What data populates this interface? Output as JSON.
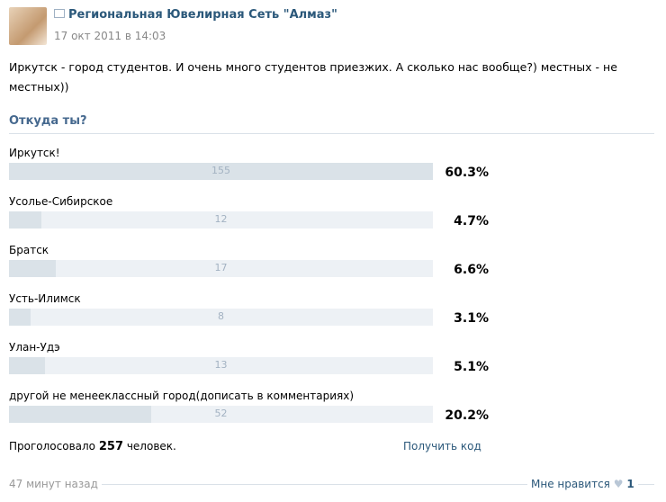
{
  "post": {
    "author": "Региональная Ювелирная Сеть \"Алмаз\"",
    "date": "17 окт 2011 в 14:03",
    "text": "Иркутск - город студентов. И очень много студентов приезжих. А сколько нас вообще?) местных - не местных))"
  },
  "poll": {
    "title": "Откуда ты?",
    "options": [
      {
        "label": "Иркутск!",
        "votes": 155,
        "percent": "60.3%"
      },
      {
        "label": "Усолье-Сибирское",
        "votes": 12,
        "percent": "4.7%"
      },
      {
        "label": "Братск",
        "votes": 17,
        "percent": "6.6%"
      },
      {
        "label": "Усть-Илимск",
        "votes": 8,
        "percent": "3.1%"
      },
      {
        "label": "Улан-Удэ",
        "votes": 13,
        "percent": "5.1%"
      },
      {
        "label": "другой не менееклассный город(дописать в комментариях)",
        "votes": 52,
        "percent": "20.2%"
      }
    ],
    "total_prefix": "Проголосовало",
    "total": 257,
    "total_suffix": "человек.",
    "get_code": "Получить код"
  },
  "footer": {
    "time": "47 минут назад",
    "like": "Мне нравится",
    "likes": 1
  }
}
